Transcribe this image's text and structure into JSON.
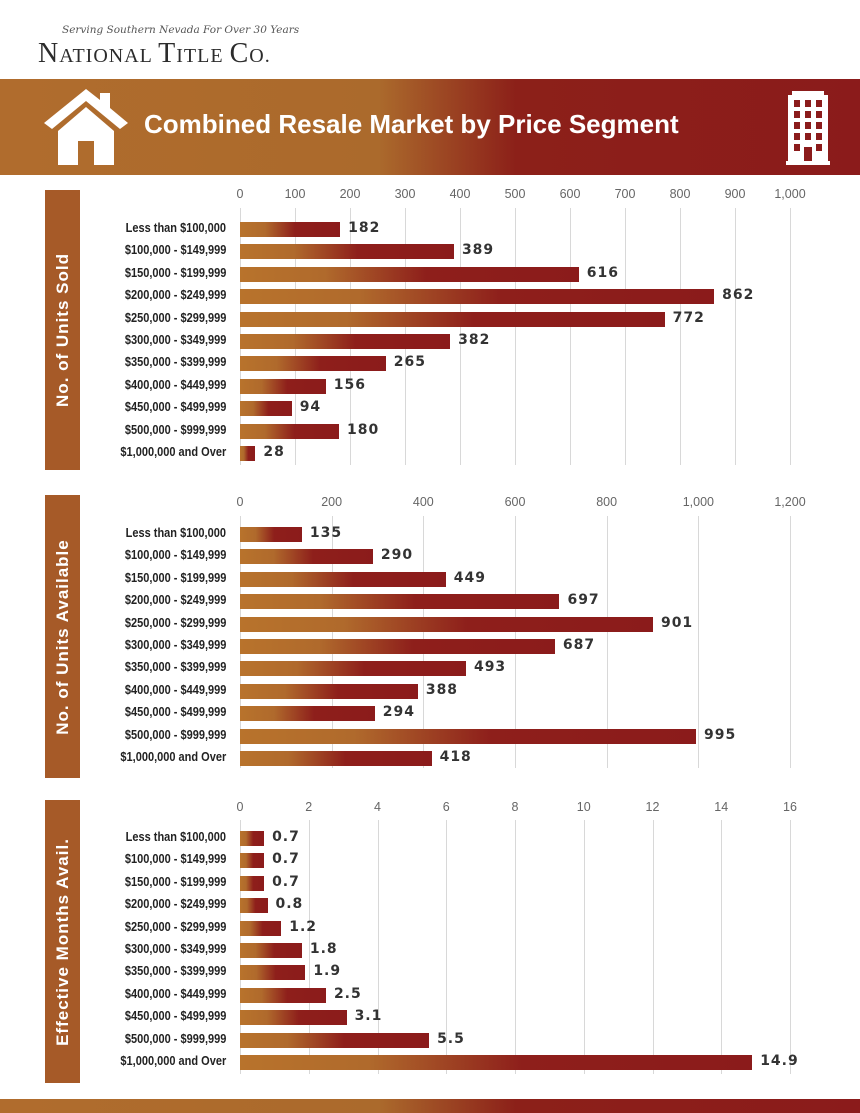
{
  "brand": {
    "tagline": "Serving Southern Nevada For Over 30 Years",
    "name": "National Title Co."
  },
  "banner": {
    "title": "Combined Resale Market by Price Segment",
    "left_icon": "house-icon",
    "right_icon": "building-icon"
  },
  "colors": {
    "bar_start": "#b8732c",
    "bar_end": "#8b1b1b",
    "tab": "#a65a28"
  },
  "chart_data": [
    {
      "type": "bar",
      "orientation": "horizontal",
      "title": "No. of Units Sold",
      "categories": [
        "Less than $100,000",
        "$100,000 - $149,999",
        "$150,000 - $199,999",
        "$200,000 - $249,999",
        "$250,000 - $299,999",
        "$300,000 - $349,999",
        "$350,000 - $399,999",
        "$400,000 - $449,999",
        "$450,000 - $499,999",
        "$500,000 - $999,999",
        "$1,000,000 and Over"
      ],
      "values": [
        182,
        389,
        616,
        862,
        772,
        382,
        265,
        156,
        94,
        180,
        28
      ],
      "value_labels": [
        "182",
        "389",
        "616",
        "862",
        "772",
        "382",
        "265",
        "156",
        "94",
        "180",
        "28"
      ],
      "xlim": [
        0,
        1000
      ],
      "ticks": [
        0,
        100,
        200,
        300,
        400,
        500,
        600,
        700,
        800,
        900,
        1000
      ],
      "tick_labels": [
        "0",
        "100",
        "200",
        "300",
        "400",
        "500",
        "600",
        "700",
        "800",
        "900",
        "1,000"
      ],
      "grid": true,
      "axis_position": "top"
    },
    {
      "type": "bar",
      "orientation": "horizontal",
      "title": "No. of Units Available",
      "categories": [
        "Less than $100,000",
        "$100,000 - $149,999",
        "$150,000 - $199,999",
        "$200,000 - $249,999",
        "$250,000 - $299,999",
        "$300,000 - $349,999",
        "$350,000 - $399,999",
        "$400,000 - $449,999",
        "$450,000 - $499,999",
        "$500,000 - $999,999",
        "$1,000,000 and Over"
      ],
      "values": [
        135,
        290,
        449,
        697,
        901,
        687,
        493,
        388,
        294,
        995,
        418
      ],
      "value_labels": [
        "135",
        "290",
        "449",
        "697",
        "901",
        "687",
        "493",
        "388",
        "294",
        "995",
        "418"
      ],
      "xlim": [
        0,
        1200
      ],
      "ticks": [
        0,
        200,
        400,
        600,
        800,
        1000,
        1200
      ],
      "tick_labels": [
        "0",
        "200",
        "400",
        "600",
        "800",
        "1,000",
        "1,200"
      ],
      "grid": true,
      "axis_position": "top"
    },
    {
      "type": "bar",
      "orientation": "horizontal",
      "title": "Effective Months Avail.",
      "categories": [
        "Less than $100,000",
        "$100,000 - $149,999",
        "$150,000 - $199,999",
        "$200,000 - $249,999",
        "$250,000 - $299,999",
        "$300,000 - $349,999",
        "$350,000 - $399,999",
        "$400,000 - $449,999",
        "$450,000 - $499,999",
        "$500,000 - $999,999",
        "$1,000,000 and Over"
      ],
      "values": [
        0.7,
        0.7,
        0.7,
        0.8,
        1.2,
        1.8,
        1.9,
        2.5,
        3.1,
        5.5,
        14.9
      ],
      "value_labels": [
        "0.7",
        "0.7",
        "0.7",
        "0.8",
        "1.2",
        "1.8",
        "1.9",
        "2.5",
        "3.1",
        "5.5",
        "14.9"
      ],
      "xlim": [
        0,
        16
      ],
      "ticks": [
        0,
        2,
        4,
        6,
        8,
        10,
        12,
        14,
        16
      ],
      "tick_labels": [
        "0",
        "2",
        "4",
        "6",
        "8",
        "10",
        "12",
        "14",
        "16"
      ],
      "grid": true,
      "axis_position": "top"
    }
  ]
}
